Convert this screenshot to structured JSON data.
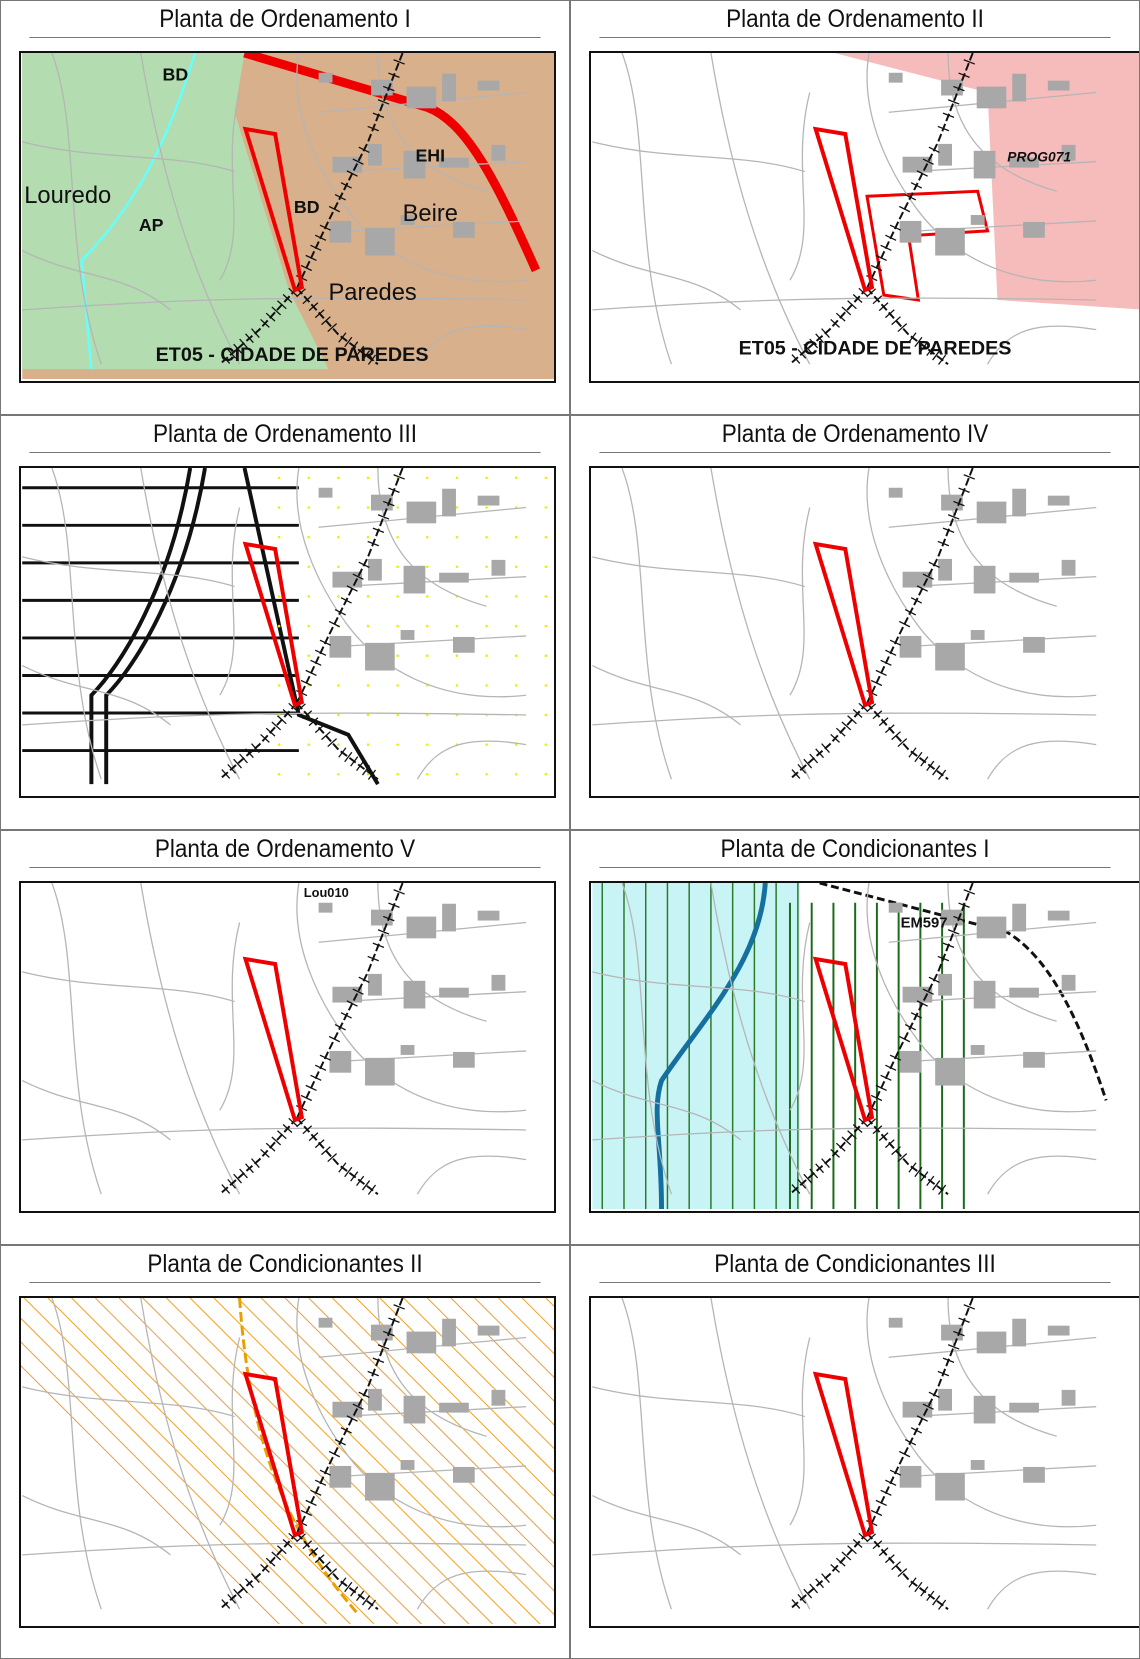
{
  "table": {
    "cells": [
      {
        "title": "Planta de Ordenamento I",
        "labels": [
          "BD",
          "EHI",
          "Louredo",
          "AP",
          "BD",
          "Beire",
          "Paredes",
          "ET05 - CIDADE DE PAREDES"
        ]
      },
      {
        "title": "Planta de Ordenamento II",
        "labels": [
          "PROG071",
          "ET05 - CIDADE DE PAREDES"
        ]
      },
      {
        "title": "Planta de Ordenamento III",
        "labels": []
      },
      {
        "title": "Planta de Ordenamento IV",
        "labels": []
      },
      {
        "title": "Planta de Ordenamento V",
        "labels": [
          "Lou010"
        ]
      },
      {
        "title": "Planta de Condicionantes I",
        "labels": [
          "EM597"
        ]
      },
      {
        "title": "Planta de Condicionantes II",
        "labels": []
      },
      {
        "title": "Planta de Condicionantes III",
        "labels": []
      }
    ]
  }
}
